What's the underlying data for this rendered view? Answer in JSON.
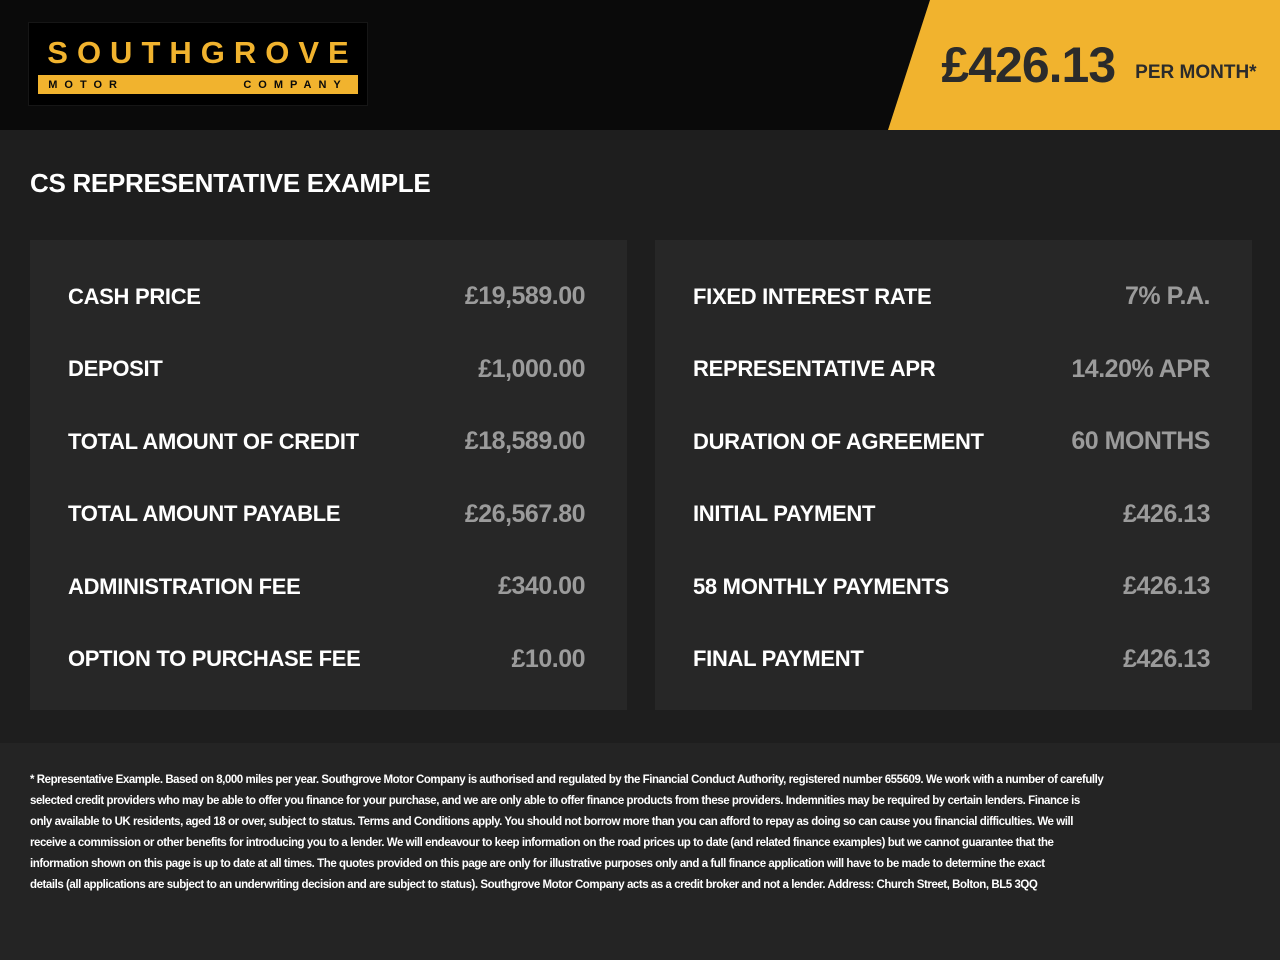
{
  "brand": {
    "name": "SOUTHGROVE",
    "tagline_left": "MOTOR",
    "tagline_right": "COMPANY"
  },
  "price_banner": {
    "amount": "£426.13",
    "period": "PER MONTH*"
  },
  "heading": "CS REPRESENTATIVE EXAMPLE",
  "finance_left": {
    "rows": [
      {
        "label": "CASH PRICE",
        "value": "£19,589.00"
      },
      {
        "label": "DEPOSIT",
        "value": "£1,000.00"
      },
      {
        "label": "TOTAL AMOUNT OF CREDIT",
        "value": "£18,589.00"
      },
      {
        "label": "TOTAL AMOUNT PAYABLE",
        "value": "£26,567.80"
      },
      {
        "label": "ADMINISTRATION FEE",
        "value": "£340.00"
      },
      {
        "label": "OPTION TO PURCHASE FEE",
        "value": "£10.00"
      }
    ]
  },
  "finance_right": {
    "rows": [
      {
        "label": "FIXED INTEREST RATE",
        "value": "7% P.A."
      },
      {
        "label": "REPRESENTATIVE APR",
        "value": "14.20% APR"
      },
      {
        "label": "DURATION OF AGREEMENT",
        "value": "60 MONTHS"
      },
      {
        "label": "INITIAL PAYMENT",
        "value": "£426.13"
      },
      {
        "label": "58 MONTHLY PAYMENTS",
        "value": "£426.13"
      },
      {
        "label": "FINAL PAYMENT",
        "value": "£426.13"
      }
    ]
  },
  "disclaimer": {
    "lines": [
      "* Representative Example. Based on 8,000 miles per year. Southgrove Motor Company is authorised and regulated by the Financial Conduct Authority, registered number 655609. We work with a number of carefully",
      "selected credit providers who may be able to offer you finance for your purchase, and we are only able to offer finance products from these providers. Indemnities may be required by certain lenders. Finance is",
      "only available to UK residents, aged 18 or over, subject to status. Terms and Conditions apply. You should not borrow more than you can afford to repay as doing so can cause you financial difficulties. We will",
      "receive a commission or other benefits for introducing you to a lender. We will endeavour to keep information on the road prices up to date (and related finance examples) but we cannot guarantee that the",
      "information shown on this page is up to date at all times. The quotes provided on this page are only for illustrative purposes only and a full finance application will have to be made to determine the exact",
      "details (all applications are subject to an underwriting decision and are subject to status). Southgrove Motor Company acts as a credit broker and not a lender. Address: Church Street, Bolton, BL5 3QQ"
    ]
  },
  "colors": {
    "accent_yellow": "#F1B32E",
    "header_bg": "#0A0A0A",
    "page_bg": "#1E1E1E",
    "panel_bg": "#272727",
    "footer_bg": "#242424",
    "label_text": "#FFFFFF",
    "value_text": "#9B9B9B",
    "banner_text": "#2B2B2B"
  }
}
